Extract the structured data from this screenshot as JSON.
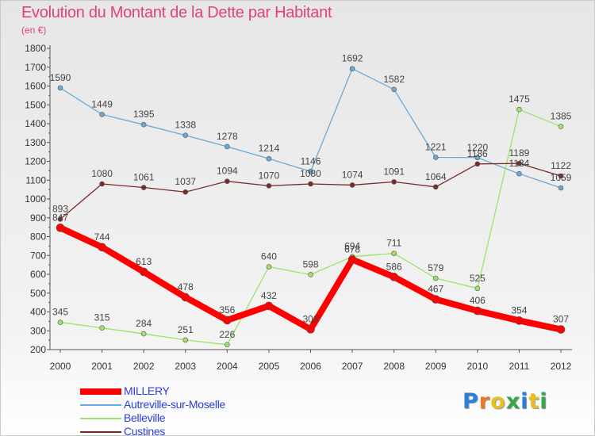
{
  "header": {
    "title": "Evolution du Montant de la Dette par Habitant",
    "unit": "(en €)"
  },
  "logo": {
    "text": "Proxiti",
    "letters": [
      {
        "char": "P",
        "color": "#2b7fd8"
      },
      {
        "char": "r",
        "color": "#f07820"
      },
      {
        "char": "o",
        "color": "#e8c020"
      },
      {
        "char": "x",
        "color": "#3aa64a"
      },
      {
        "char": "i",
        "color": "#2b7fd8"
      },
      {
        "char": "t",
        "color": "#e8c020"
      },
      {
        "char": "i",
        "color": "#3aa64a"
      }
    ]
  },
  "chart_data": {
    "type": "line",
    "title": "Evolution du Montant de la Dette par Habitant",
    "ylabel": "(en €)",
    "xlabel": "",
    "ylim": [
      200,
      1800
    ],
    "yticks": [
      200,
      300,
      400,
      500,
      600,
      700,
      800,
      900,
      1000,
      1100,
      1200,
      1300,
      1400,
      1500,
      1600,
      1700,
      1800
    ],
    "x": [
      "2000",
      "2001",
      "2002",
      "2003",
      "2004",
      "2005",
      "2006",
      "2007",
      "2008",
      "2009",
      "2010",
      "2011",
      "2012"
    ],
    "grid": false,
    "legend_position": "bottom-left",
    "series": [
      {
        "name": "MILLERY",
        "color": "#ff0000",
        "width": 8,
        "values": [
          847,
          744,
          613,
          478,
          356,
          432,
          308,
          678,
          586,
          467,
          406,
          354,
          307
        ]
      },
      {
        "name": "Autreville-sur-Moselle",
        "color": "#6aaad8",
        "width": 1.3,
        "values": [
          1590,
          1449,
          1395,
          1338,
          1278,
          1214,
          1146,
          1692,
          1582,
          1221,
          1220,
          1134,
          1059
        ]
      },
      {
        "name": "Belleville",
        "color": "#9de36a",
        "width": 1.3,
        "values": [
          345,
          315,
          284,
          251,
          226,
          640,
          598,
          694,
          711,
          579,
          525,
          1475,
          1385
        ]
      },
      {
        "name": "Custines",
        "color": "#7b2a2a",
        "width": 1.3,
        "values": [
          893,
          1080,
          1061,
          1037,
          1094,
          1070,
          1080,
          1074,
          1091,
          1064,
          1186,
          1189,
          1122
        ]
      }
    ]
  }
}
